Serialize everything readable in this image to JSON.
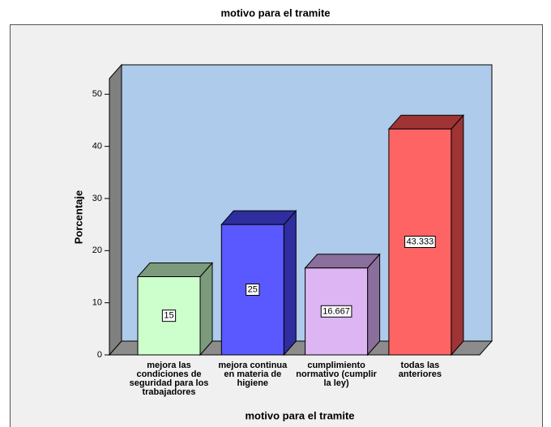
{
  "chart_data": {
    "type": "bar3d",
    "title": "motivo para el tramite",
    "x_label": "motivo para el tramite",
    "y_label": "Porcentaje",
    "categories": [
      "mejora las condiciones de seguridad para los trabajadores",
      "mejora continua en materia de higiene",
      "cumplimiento normativo (cumplir la ley)",
      "todas las anteriores"
    ],
    "values": [
      15,
      25,
      16.667,
      43.333
    ],
    "colors": [
      "#ccffcc",
      "#5959ff",
      "#dcb5f2",
      "#ff6464"
    ],
    "side_colors": [
      "#7c9a7c",
      "#2e2e9e",
      "#8a6f9c",
      "#9e3434"
    ],
    "ylim": [
      0,
      53
    ],
    "yticks": [
      0,
      10,
      20,
      30,
      40,
      50
    ]
  }
}
